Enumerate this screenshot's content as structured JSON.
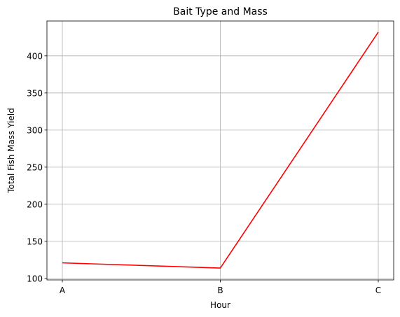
{
  "chart_data": {
    "type": "line",
    "title": "Bait Type and Mass",
    "xlabel": "Hour",
    "ylabel": "Total Fish Mass Yield",
    "categories": [
      "A",
      "B",
      "C"
    ],
    "series": [
      {
        "values": [
          121,
          114,
          432
        ],
        "color": "#ff0000"
      }
    ],
    "ylim": [
      98,
      447
    ],
    "yticks": [
      100,
      150,
      200,
      250,
      300,
      350,
      400
    ],
    "grid": true
  }
}
